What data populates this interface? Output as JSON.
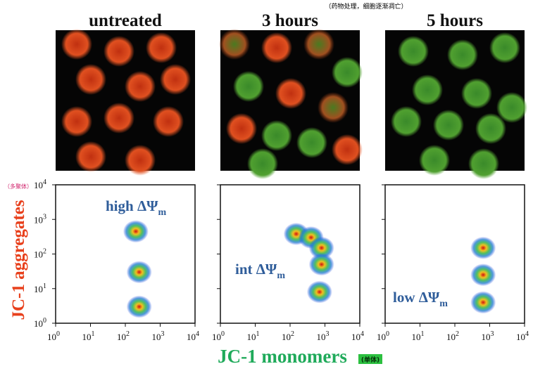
{
  "figure": {
    "note": "（药物处理，细胞逐渐凋亡）",
    "y_label": "JC-1 aggregates",
    "y_label_note": "（多聚体）",
    "x_label": "JC-1 monomers",
    "x_label_note": "(单体)"
  },
  "chart_data": [
    {
      "type": "scatter",
      "title": "untreated",
      "log_scale": true,
      "xlim": [
        1,
        10000
      ],
      "ylim": [
        1,
        10000
      ],
      "xticks": [
        {
          "value": 1,
          "base": "10",
          "exp": "0"
        },
        {
          "value": 10,
          "base": "10",
          "exp": "1"
        },
        {
          "value": 100,
          "base": "10",
          "exp": "2"
        },
        {
          "value": 1000,
          "base": "10",
          "exp": "3"
        },
        {
          "value": 10000,
          "base": "10",
          "exp": "4"
        }
      ],
      "yticks": [
        {
          "value": 1,
          "base": "10",
          "exp": "0"
        },
        {
          "value": 10,
          "base": "10",
          "exp": "1"
        },
        {
          "value": 100,
          "base": "10",
          "exp": "2"
        },
        {
          "value": 1000,
          "base": "10",
          "exp": "3"
        },
        {
          "value": 10000,
          "base": "10",
          "exp": "4"
        }
      ],
      "annotation": {
        "text": "high ΔΨ",
        "subscript": "m"
      },
      "x": [
        200,
        250,
        250
      ],
      "y": [
        450,
        30,
        3
      ]
    },
    {
      "type": "scatter",
      "title": "3 hours",
      "log_scale": true,
      "xlim": [
        1,
        10000
      ],
      "ylim": [
        1,
        10000
      ],
      "xticks": [
        {
          "value": 1,
          "base": "10",
          "exp": "0"
        },
        {
          "value": 10,
          "base": "10",
          "exp": "1"
        },
        {
          "value": 100,
          "base": "10",
          "exp": "2"
        },
        {
          "value": 1000,
          "base": "10",
          "exp": "3"
        },
        {
          "value": 10000,
          "base": "10",
          "exp": "4"
        }
      ],
      "yticks": [
        1,
        10,
        100,
        1000,
        10000
      ],
      "annotation": {
        "text": "int ΔΨ",
        "subscript": "m"
      },
      "x": [
        150,
        400,
        800,
        800,
        700
      ],
      "y": [
        380,
        300,
        150,
        50,
        8
      ]
    },
    {
      "type": "scatter",
      "title": "5 hours",
      "log_scale": true,
      "xlim": [
        1,
        10000
      ],
      "ylim": [
        1,
        10000
      ],
      "xticks": [
        {
          "value": 1,
          "base": "10",
          "exp": "0"
        },
        {
          "value": 10,
          "base": "10",
          "exp": "1"
        },
        {
          "value": 100,
          "base": "10",
          "exp": "2"
        },
        {
          "value": 1000,
          "base": "10",
          "exp": "3"
        },
        {
          "value": 10000,
          "base": "10",
          "exp": "4"
        }
      ],
      "yticks": [
        1,
        10,
        100,
        1000,
        10000
      ],
      "annotation": {
        "text": "low ΔΨ",
        "subscript": "m"
      },
      "x": [
        650,
        650,
        650
      ],
      "y": [
        150,
        25,
        4
      ]
    }
  ]
}
